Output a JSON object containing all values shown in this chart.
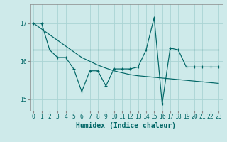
{
  "xlabel": "Humidex (Indice chaleur)",
  "ylabel": "",
  "bg_color": "#ceeaea",
  "grid_color": "#aad4d4",
  "line_color": "#006666",
  "x_data": [
    0,
    1,
    2,
    3,
    4,
    5,
    6,
    7,
    8,
    9,
    10,
    11,
    12,
    13,
    14,
    15,
    16,
    17,
    18,
    19,
    20,
    21,
    22,
    23
  ],
  "y_main": [
    17.0,
    17.0,
    16.3,
    16.1,
    16.1,
    15.8,
    15.2,
    15.75,
    15.75,
    15.35,
    15.8,
    15.8,
    15.8,
    15.85,
    16.3,
    17.15,
    14.88,
    16.35,
    16.3,
    15.85,
    15.85,
    15.85,
    15.85,
    15.85
  ],
  "y_trend1": [
    17.0,
    16.85,
    16.7,
    16.55,
    16.4,
    16.25,
    16.1,
    16.0,
    15.9,
    15.82,
    15.75,
    15.7,
    15.65,
    15.62,
    15.6,
    15.58,
    15.56,
    15.54,
    15.52,
    15.5,
    15.48,
    15.46,
    15.44,
    15.42
  ],
  "y_trend2": [
    16.3,
    16.3,
    16.3,
    16.3,
    16.3,
    16.3,
    16.3,
    16.3,
    16.3,
    16.3,
    16.3,
    16.3,
    16.3,
    16.3,
    16.3,
    16.3,
    16.3,
    16.3,
    16.3,
    16.3,
    16.3,
    16.3,
    16.3,
    16.3
  ],
  "ylim": [
    14.7,
    17.5
  ],
  "xlim": [
    -0.5,
    23.5
  ],
  "yticks": [
    15,
    16,
    17
  ],
  "xticks": [
    0,
    1,
    2,
    3,
    4,
    5,
    6,
    7,
    8,
    9,
    10,
    11,
    12,
    13,
    14,
    15,
    16,
    17,
    18,
    19,
    20,
    21,
    22,
    23
  ],
  "tick_fontsize": 5.8,
  "xlabel_fontsize": 7.0
}
